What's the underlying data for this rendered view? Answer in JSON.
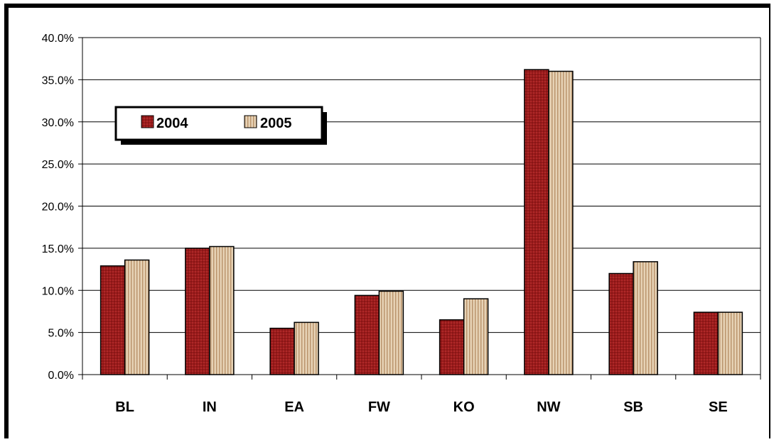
{
  "chart_data": {
    "type": "bar",
    "categories": [
      "BL",
      "IN",
      "EA",
      "FW",
      "KO",
      "NW",
      "SB",
      "SE"
    ],
    "series": [
      {
        "name": "2004",
        "values": [
          12.9,
          15.0,
          5.5,
          9.4,
          6.5,
          36.2,
          12.0,
          7.4
        ]
      },
      {
        "name": "2005",
        "values": [
          13.6,
          15.2,
          6.2,
          9.9,
          9.0,
          36.0,
          13.4,
          7.4
        ]
      }
    ],
    "y_ticks": [
      "0.0%",
      "5.0%",
      "10.0%",
      "15.0%",
      "20.0%",
      "25.0%",
      "30.0%",
      "35.0%",
      "40.0%"
    ],
    "ylim": [
      0,
      40
    ],
    "grid": true,
    "legend_position": "upper-left",
    "title": "",
    "xlabel": "",
    "ylabel": "",
    "colors": {
      "series_2004": "#9b1b1b",
      "series_2005": "#d9bfa0",
      "grid": "#000000",
      "frame": "#000000"
    }
  }
}
